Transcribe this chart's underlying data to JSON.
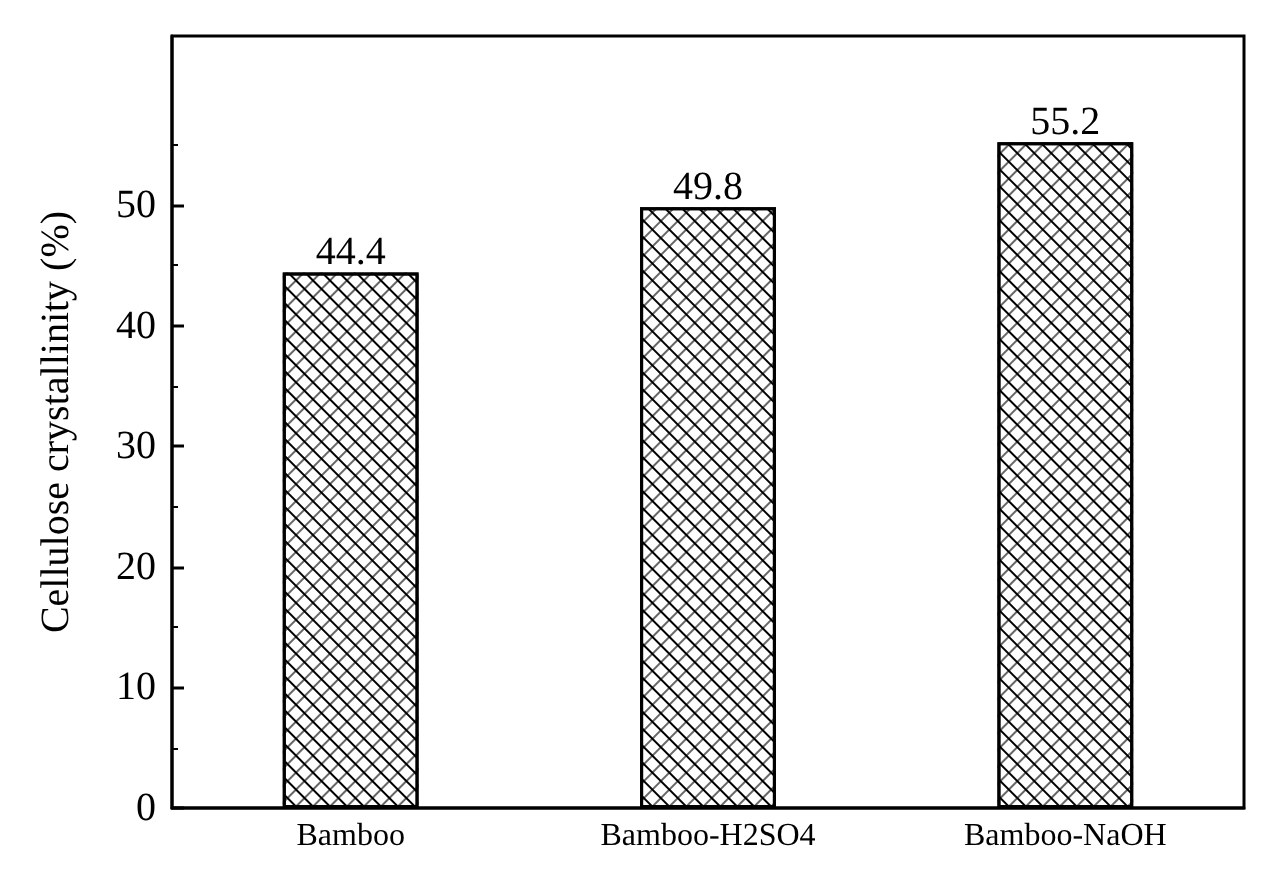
{
  "chart_data": {
    "type": "bar",
    "ylabel": "Cellulose crystallinity (%)",
    "categories": [
      "Bamboo",
      "Bamboo-H2SO4",
      "Bamboo-NaOH"
    ],
    "values": [
      44.4,
      49.8,
      55.2
    ],
    "color": "#ffffff",
    "ylim": [
      0,
      64
    ],
    "yticks": [
      0,
      10,
      20,
      30,
      40,
      50
    ],
    "grid": false,
    "data_labels": true
  }
}
